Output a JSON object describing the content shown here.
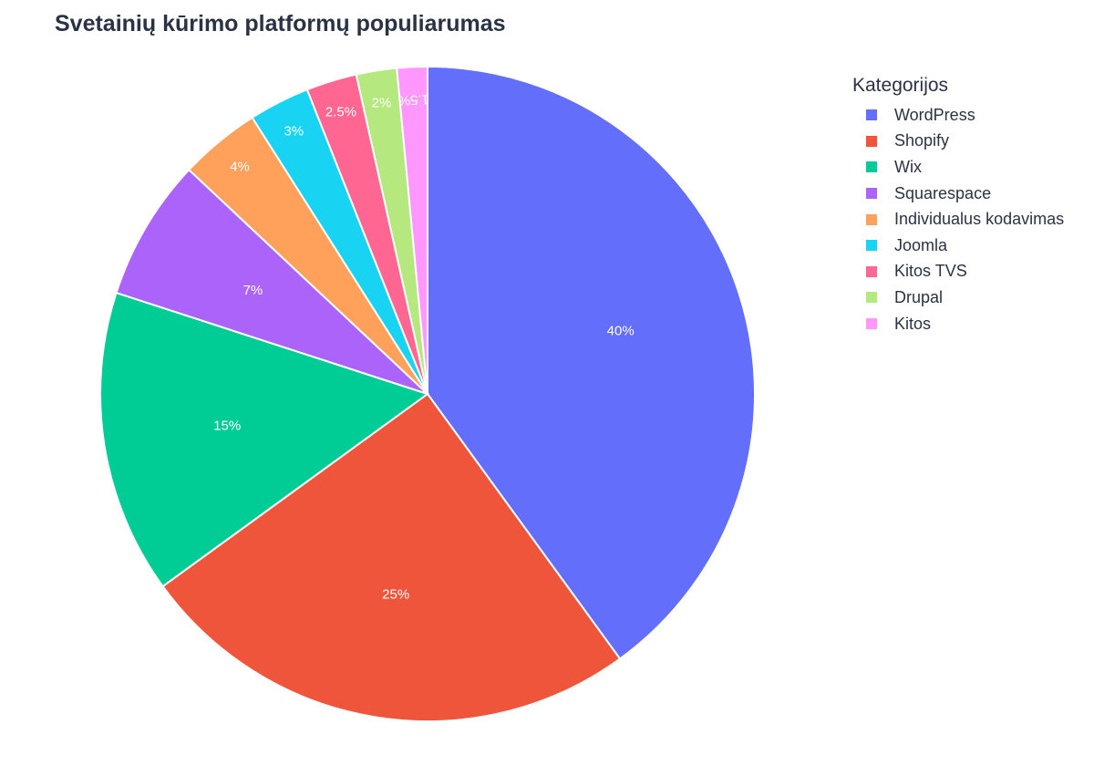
{
  "chart_data": {
    "type": "pie",
    "title": "Svetainių kūrimo platformų populiarumas",
    "legend_title": "Kategorijos",
    "legend_position": "right",
    "categories": [
      "WordPress",
      "Shopify",
      "Wix",
      "Squarespace",
      "Individualus kodavimas",
      "Joomla",
      "Kitos TVS",
      "Drupal",
      "Kitos"
    ],
    "values": [
      40,
      25,
      15,
      7,
      4,
      3,
      2.5,
      2,
      1.5
    ],
    "labels": [
      "40%",
      "25%",
      "15%",
      "7%",
      "4%",
      "3%",
      "2.5%",
      "2%",
      "1.5%"
    ],
    "colors": [
      "#636efa",
      "#ef553b",
      "#00cc96",
      "#ab63fa",
      "#ffa15a",
      "#19d3f3",
      "#ff6692",
      "#b6e880",
      "#ff97ff"
    ],
    "direction": "counterclockwise",
    "start_angle_deg": 90
  }
}
